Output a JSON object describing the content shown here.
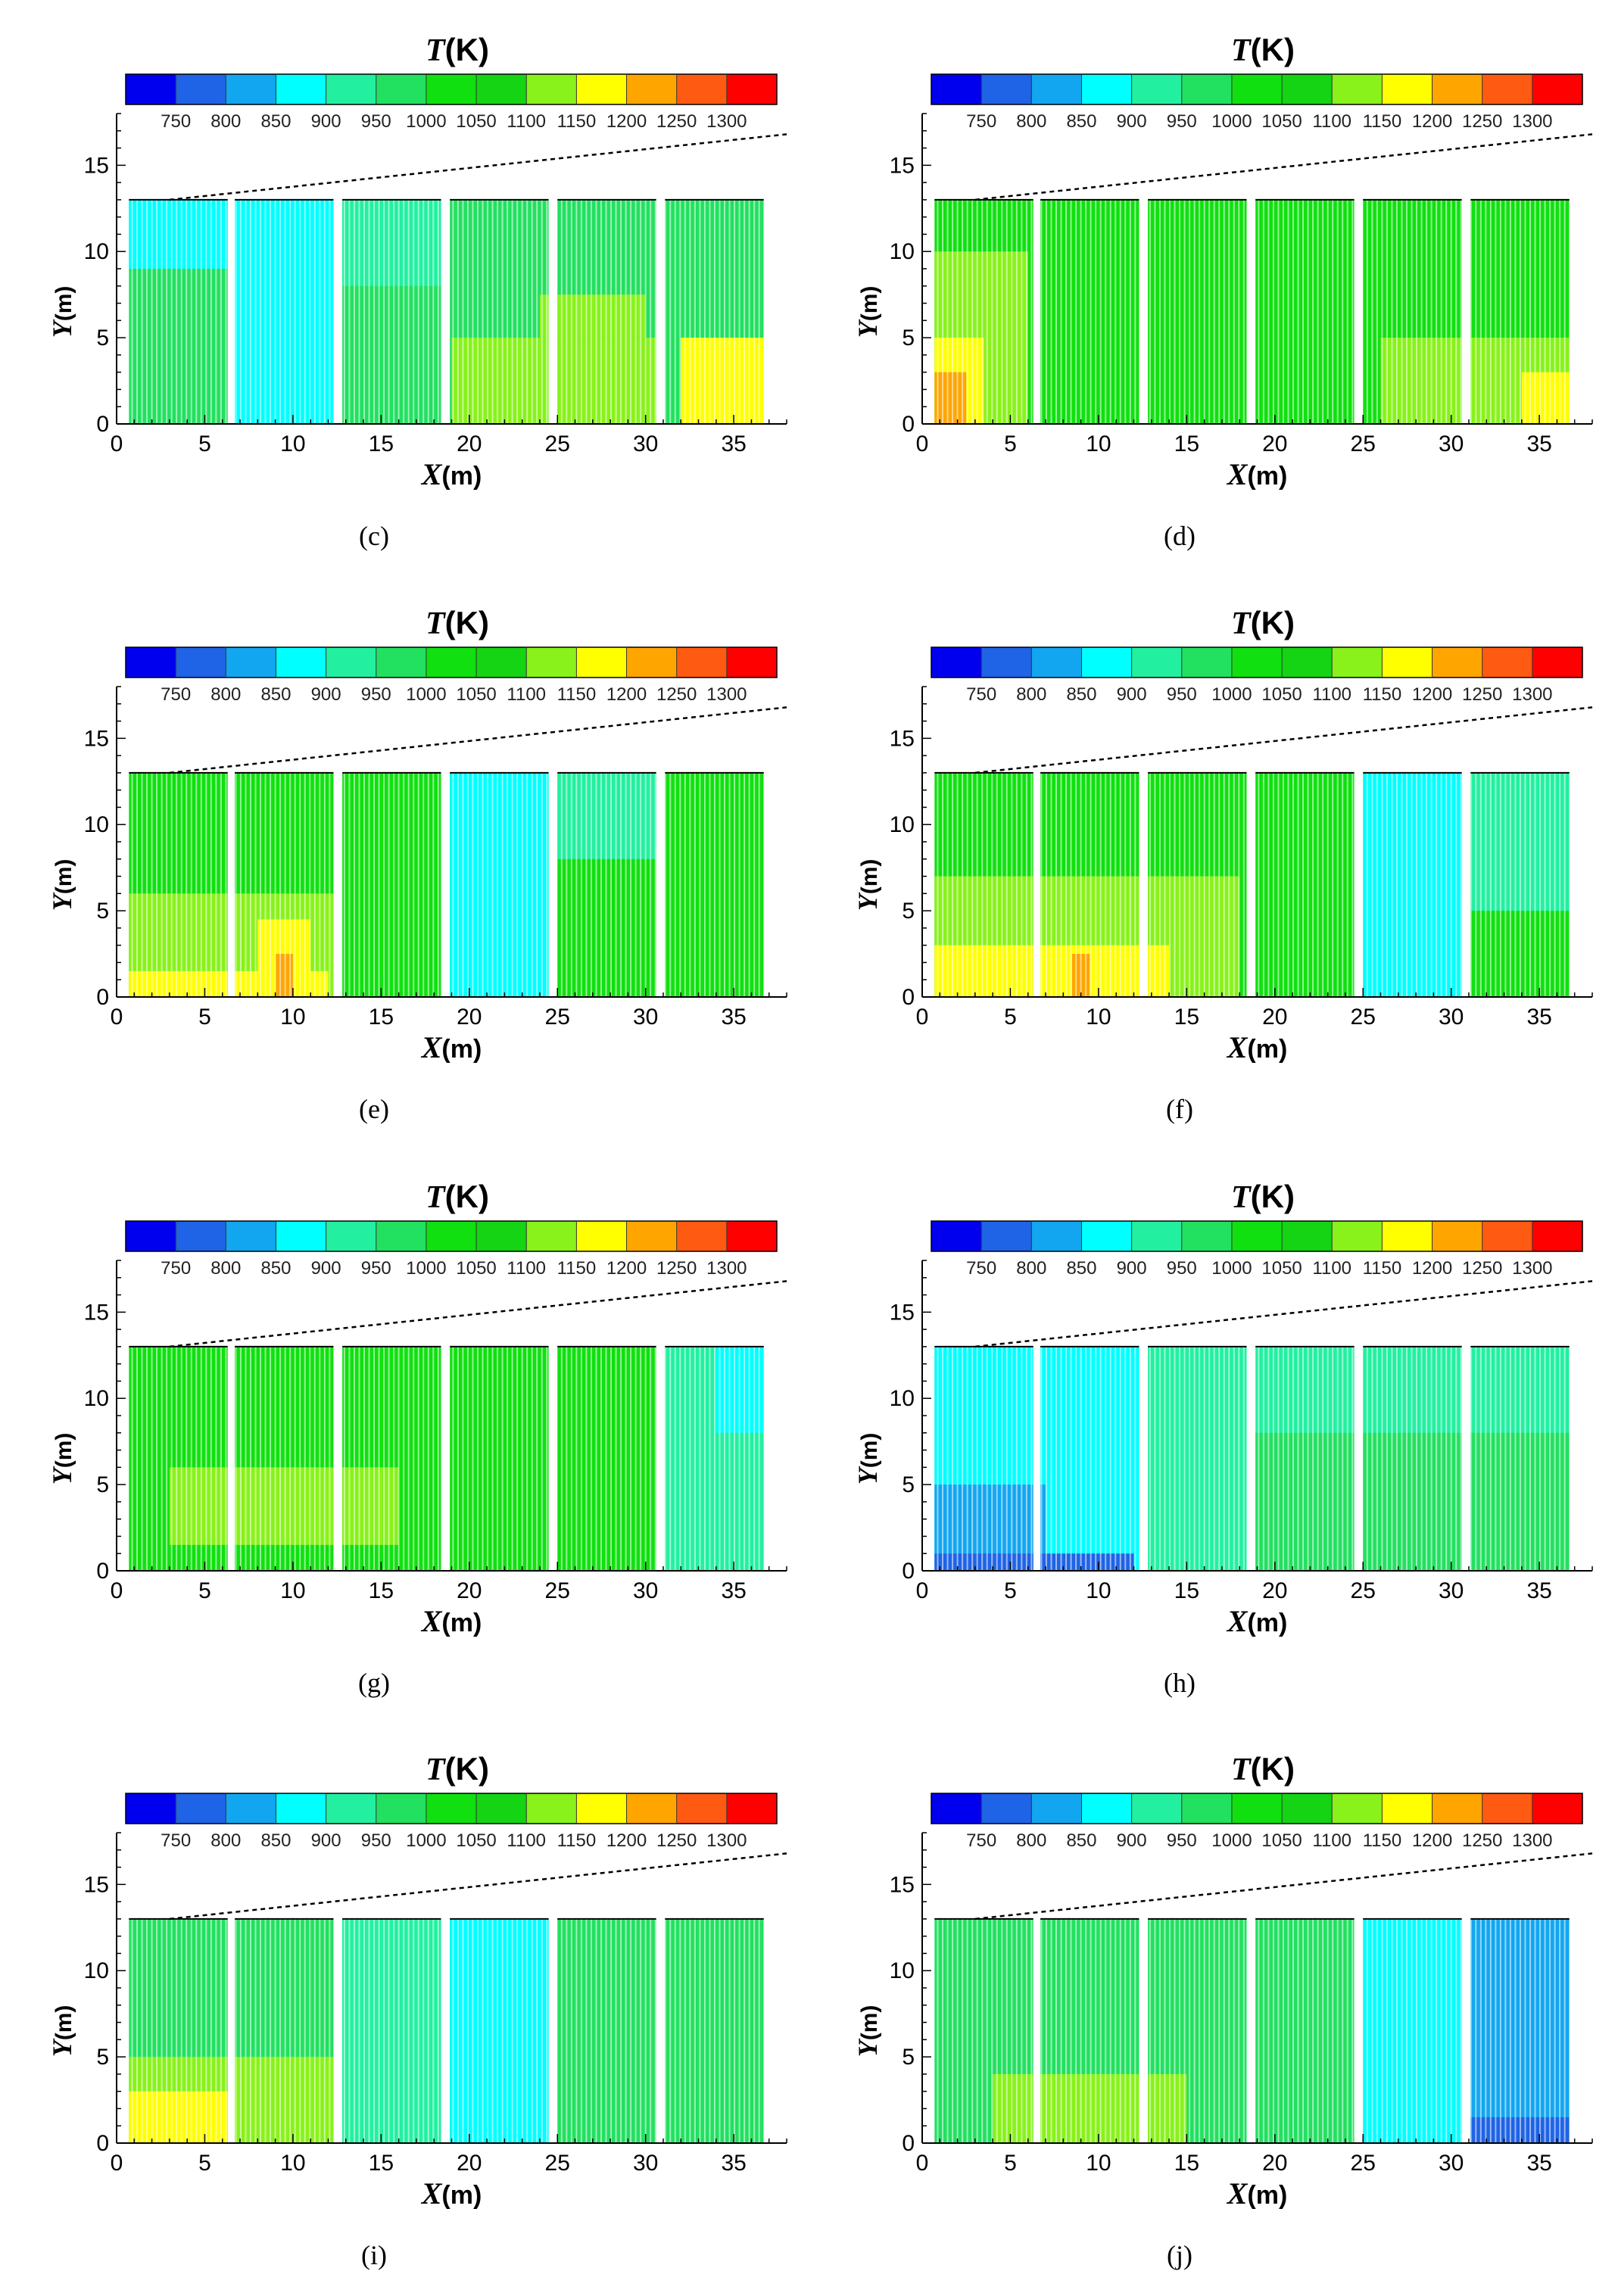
{
  "colorbar": {
    "title_var": "T",
    "title_unit": "(K)",
    "levels": [
      750,
      800,
      850,
      900,
      950,
      1000,
      1050,
      1100,
      1150,
      1200,
      1250,
      1300
    ],
    "tick_labels": [
      "750",
      "800",
      "850",
      "900",
      "950",
      "1000",
      "1050",
      "1100",
      "1150",
      "1200",
      "1250",
      "1300"
    ],
    "colors": [
      "#0000ee",
      "#1f63e6",
      "#12a6f0",
      "#00ffff",
      "#22f0a0",
      "#22e060",
      "#10e010",
      "#14d414",
      "#88f21a",
      "#ffff00",
      "#ffa500",
      "#ff5a12",
      "#ff0000"
    ]
  },
  "chart_data": [
    {
      "panel": "c",
      "type": "heatmap",
      "title": "T(K)",
      "xlabel_var": "X",
      "xlabel_unit": "(m)",
      "ylabel_var": "Y",
      "ylabel_unit": "(m)",
      "xlim": [
        0,
        38
      ],
      "ylim": [
        0,
        18
      ],
      "xticks": [
        0,
        5,
        10,
        15,
        20,
        25,
        30,
        35
      ],
      "yticks": [
        0,
        5,
        10,
        15
      ],
      "regions": [
        {
          "tier": 5,
          "x": [
            0.5,
            37
          ],
          "y": [
            0,
            13
          ]
        },
        {
          "tier": 3,
          "x": [
            0.5,
            6.5
          ],
          "y": [
            9,
            13
          ]
        },
        {
          "tier": 3,
          "x": [
            6.5,
            12.5
          ],
          "y": [
            0,
            13
          ]
        },
        {
          "tier": 4,
          "x": [
            12.5,
            18.5
          ],
          "y": [
            8,
            13
          ]
        },
        {
          "tier": 8,
          "x": [
            19,
            31
          ],
          "y": [
            0,
            5
          ]
        },
        {
          "tier": 8,
          "x": [
            24,
            30
          ],
          "y": [
            5,
            7.5
          ]
        },
        {
          "tier": 9,
          "x": [
            32,
            37
          ],
          "y": [
            0,
            5
          ]
        }
      ]
    },
    {
      "panel": "d",
      "type": "heatmap",
      "title": "T(K)",
      "xlabel_var": "X",
      "xlabel_unit": "(m)",
      "ylabel_var": "Y",
      "ylabel_unit": "(m)",
      "xlim": [
        0,
        38
      ],
      "ylim": [
        0,
        18
      ],
      "xticks": [
        0,
        5,
        10,
        15,
        20,
        25,
        30,
        35
      ],
      "yticks": [
        0,
        5,
        10,
        15
      ],
      "regions": [
        {
          "tier": 6,
          "x": [
            0.5,
            37
          ],
          "y": [
            0,
            13
          ]
        },
        {
          "tier": 8,
          "x": [
            0.5,
            6
          ],
          "y": [
            0,
            10
          ]
        },
        {
          "tier": 9,
          "x": [
            0.5,
            3.5
          ],
          "y": [
            0,
            5
          ]
        },
        {
          "tier": 10,
          "x": [
            0.5,
            2.5
          ],
          "y": [
            0,
            3
          ]
        },
        {
          "tier": 8,
          "x": [
            26,
            37
          ],
          "y": [
            0,
            5
          ]
        },
        {
          "tier": 9,
          "x": [
            34,
            37
          ],
          "y": [
            0,
            3
          ]
        }
      ]
    },
    {
      "panel": "e",
      "type": "heatmap",
      "title": "T(K)",
      "xlabel_var": "X",
      "xlabel_unit": "(m)",
      "ylabel_var": "Y",
      "ylabel_unit": "(m)",
      "xlim": [
        0,
        38
      ],
      "ylim": [
        0,
        18
      ],
      "xticks": [
        0,
        5,
        10,
        15,
        20,
        25,
        30,
        35
      ],
      "yticks": [
        0,
        5,
        10,
        15
      ],
      "regions": [
        {
          "tier": 6,
          "x": [
            0.5,
            37
          ],
          "y": [
            0,
            13
          ]
        },
        {
          "tier": 8,
          "x": [
            0.5,
            12.5
          ],
          "y": [
            0,
            6
          ]
        },
        {
          "tier": 9,
          "x": [
            0.5,
            12
          ],
          "y": [
            0,
            1.5
          ]
        },
        {
          "tier": 9,
          "x": [
            8,
            11
          ],
          "y": [
            0,
            4.5
          ]
        },
        {
          "tier": 10,
          "x": [
            9,
            10
          ],
          "y": [
            0,
            2.5
          ]
        },
        {
          "tier": 3,
          "x": [
            18.5,
            25
          ],
          "y": [
            0,
            13
          ]
        },
        {
          "tier": 4,
          "x": [
            25,
            31
          ],
          "y": [
            8,
            13
          ]
        }
      ]
    },
    {
      "panel": "f",
      "type": "heatmap",
      "title": "T(K)",
      "xlabel_var": "X",
      "xlabel_unit": "(m)",
      "ylabel_var": "Y",
      "ylabel_unit": "(m)",
      "xlim": [
        0,
        38
      ],
      "ylim": [
        0,
        18
      ],
      "xticks": [
        0,
        5,
        10,
        15,
        20,
        25,
        30,
        35
      ],
      "yticks": [
        0,
        5,
        10,
        15
      ],
      "regions": [
        {
          "tier": 6,
          "x": [
            0.5,
            37
          ],
          "y": [
            0,
            13
          ]
        },
        {
          "tier": 8,
          "x": [
            0.5,
            18
          ],
          "y": [
            0,
            7
          ]
        },
        {
          "tier": 9,
          "x": [
            0.5,
            14
          ],
          "y": [
            0,
            3
          ]
        },
        {
          "tier": 10,
          "x": [
            8.5,
            9.5
          ],
          "y": [
            0,
            2.5
          ]
        },
        {
          "tier": 3,
          "x": [
            25,
            31
          ],
          "y": [
            0,
            13
          ]
        },
        {
          "tier": 4,
          "x": [
            31,
            37
          ],
          "y": [
            5,
            13
          ]
        }
      ]
    },
    {
      "panel": "g",
      "type": "heatmap",
      "title": "T(K)",
      "xlabel_var": "X",
      "xlabel_unit": "(m)",
      "ylabel_var": "Y",
      "ylabel_unit": "(m)",
      "xlim": [
        0,
        38
      ],
      "ylim": [
        0,
        18
      ],
      "xticks": [
        0,
        5,
        10,
        15,
        20,
        25,
        30,
        35
      ],
      "yticks": [
        0,
        5,
        10,
        15
      ],
      "regions": [
        {
          "tier": 6,
          "x": [
            0.5,
            37
          ],
          "y": [
            0,
            13
          ]
        },
        {
          "tier": 8,
          "x": [
            3,
            16
          ],
          "y": [
            1.5,
            6
          ]
        },
        {
          "tier": 4,
          "x": [
            31,
            37
          ],
          "y": [
            0,
            13
          ]
        },
        {
          "tier": 3,
          "x": [
            34,
            37
          ],
          "y": [
            8,
            13
          ]
        }
      ]
    },
    {
      "panel": "h",
      "type": "heatmap",
      "title": "T(K)",
      "xlabel_var": "X",
      "xlabel_unit": "(m)",
      "ylabel_var": "Y",
      "ylabel_unit": "(m)",
      "xlim": [
        0,
        38
      ],
      "ylim": [
        0,
        18
      ],
      "xticks": [
        0,
        5,
        10,
        15,
        20,
        25,
        30,
        35
      ],
      "yticks": [
        0,
        5,
        10,
        15
      ],
      "regions": [
        {
          "tier": 4,
          "x": [
            0.5,
            37
          ],
          "y": [
            0,
            13
          ]
        },
        {
          "tier": 3,
          "x": [
            0.5,
            12.5
          ],
          "y": [
            0,
            13
          ]
        },
        {
          "tier": 2,
          "x": [
            0.5,
            7
          ],
          "y": [
            0,
            5
          ]
        },
        {
          "tier": 1,
          "x": [
            0.5,
            12
          ],
          "y": [
            0,
            1
          ]
        },
        {
          "tier": 5,
          "x": [
            18.5,
            37
          ],
          "y": [
            0,
            8
          ]
        }
      ]
    },
    {
      "panel": "i",
      "type": "heatmap",
      "title": "T(K)",
      "xlabel_var": "X",
      "xlabel_unit": "(m)",
      "ylabel_var": "Y",
      "ylabel_unit": "(m)",
      "xlim": [
        0,
        38
      ],
      "ylim": [
        0,
        18
      ],
      "xticks": [
        0,
        5,
        10,
        15,
        20,
        25,
        30,
        35
      ],
      "yticks": [
        0,
        5,
        10,
        15
      ],
      "regions": [
        {
          "tier": 5,
          "x": [
            0.5,
            37
          ],
          "y": [
            0,
            13
          ]
        },
        {
          "tier": 8,
          "x": [
            0.5,
            12.5
          ],
          "y": [
            0,
            5
          ]
        },
        {
          "tier": 9,
          "x": [
            0.5,
            6.5
          ],
          "y": [
            0,
            3
          ]
        },
        {
          "tier": 3,
          "x": [
            18.5,
            25
          ],
          "y": [
            0,
            13
          ]
        },
        {
          "tier": 4,
          "x": [
            12.5,
            18.5
          ],
          "y": [
            0,
            13
          ]
        }
      ]
    },
    {
      "panel": "j",
      "type": "heatmap",
      "title": "T(K)",
      "xlabel_var": "X",
      "xlabel_unit": "(m)",
      "ylabel_var": "Y",
      "ylabel_unit": "(m)",
      "xlim": [
        0,
        38
      ],
      "ylim": [
        0,
        18
      ],
      "xticks": [
        0,
        5,
        10,
        15,
        20,
        25,
        30,
        35
      ],
      "yticks": [
        0,
        5,
        10,
        15
      ],
      "regions": [
        {
          "tier": 5,
          "x": [
            0.5,
            37
          ],
          "y": [
            0,
            13
          ]
        },
        {
          "tier": 8,
          "x": [
            4,
            15
          ],
          "y": [
            0,
            4
          ]
        },
        {
          "tier": 3,
          "x": [
            25,
            31
          ],
          "y": [
            0,
            13
          ]
        },
        {
          "tier": 2,
          "x": [
            31,
            37
          ],
          "y": [
            0,
            13
          ]
        },
        {
          "tier": 1,
          "x": [
            31,
            37
          ],
          "y": [
            0,
            1.5
          ]
        }
      ]
    }
  ],
  "captions": [
    "(c)",
    "(d)",
    "(e)",
    "(f)",
    "(g)",
    "(h)",
    "(i)",
    "(j)"
  ]
}
